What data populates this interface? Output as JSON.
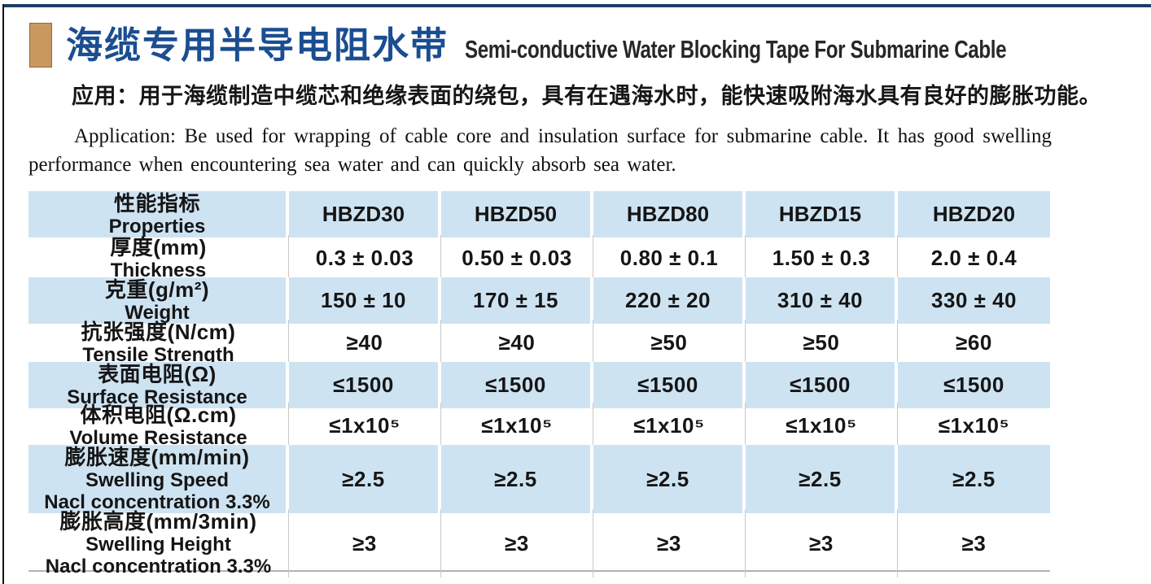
{
  "header": {
    "title_zh": "海缆专用半导电阻水带",
    "title_en": "Semi-conductive Water Blocking Tape For Submarine Cable"
  },
  "application": {
    "zh": "应用：用于海缆制造中缆芯和绝缘表面的绕包，具有在遇海水时，能快速吸附海水具有良好的膨胀功能。",
    "en": "Application: Be used for wrapping of cable core and insulation surface for submarine cable. It has good swelling performance when encountering sea water and can quickly absorb sea water."
  },
  "colors": {
    "title_blue": "#1b4e91",
    "row_blue": "#cee3f2",
    "marker_tan": "#c8995f",
    "rule_navy": "#1d3d63"
  },
  "table": {
    "header": {
      "properties_zh": "性能指标",
      "properties_en": "Properties",
      "models": [
        "HBZD30",
        "HBZD50",
        "HBZD80",
        "HBZD15",
        "HBZD20"
      ]
    },
    "rows": [
      {
        "label_zh": "厚度(mm)",
        "label_en": "Thickness",
        "values": [
          "0.3 ± 0.03",
          "0.50 ± 0.03",
          "0.80 ± 0.1",
          "1.50 ± 0.3",
          "2.0 ± 0.4"
        ]
      },
      {
        "label_zh": "克重(g/m²)",
        "label_en": "Weight",
        "values": [
          "150 ± 10",
          "170 ± 15",
          "220 ± 20",
          "310 ± 40",
          "330 ± 40"
        ]
      },
      {
        "label_zh": "抗张强度(N/cm)",
        "label_en": "Tensile Strength",
        "values": [
          "≥40",
          "≥40",
          "≥50",
          "≥50",
          "≥60"
        ]
      },
      {
        "label_zh": "表面电阻(Ω)",
        "label_en": "Surface Resistance",
        "values": [
          "≤1500",
          "≤1500",
          "≤1500",
          "≤1500",
          "≤1500"
        ]
      },
      {
        "label_zh": "体积电阻(Ω.cm)",
        "label_en": "Volume Resistance",
        "values": [
          "≤1x10⁵",
          "≤1x10⁵",
          "≤1x10⁵",
          "≤1x10⁵",
          "≤1x10⁵"
        ]
      },
      {
        "label_zh": "膨胀速度(mm/min)",
        "label_en": "Swelling Speed",
        "label_note": "Nacl concentration 3.3%",
        "values": [
          "≥2.5",
          "≥2.5",
          "≥2.5",
          "≥2.5",
          "≥2.5"
        ]
      },
      {
        "label_zh": "膨胀高度(mm/3min)",
        "label_en": "Swelling Height",
        "label_note": "Nacl concentration 3.3%",
        "values": [
          "≥3",
          "≥3",
          "≥3",
          "≥3",
          "≥3"
        ]
      }
    ]
  }
}
